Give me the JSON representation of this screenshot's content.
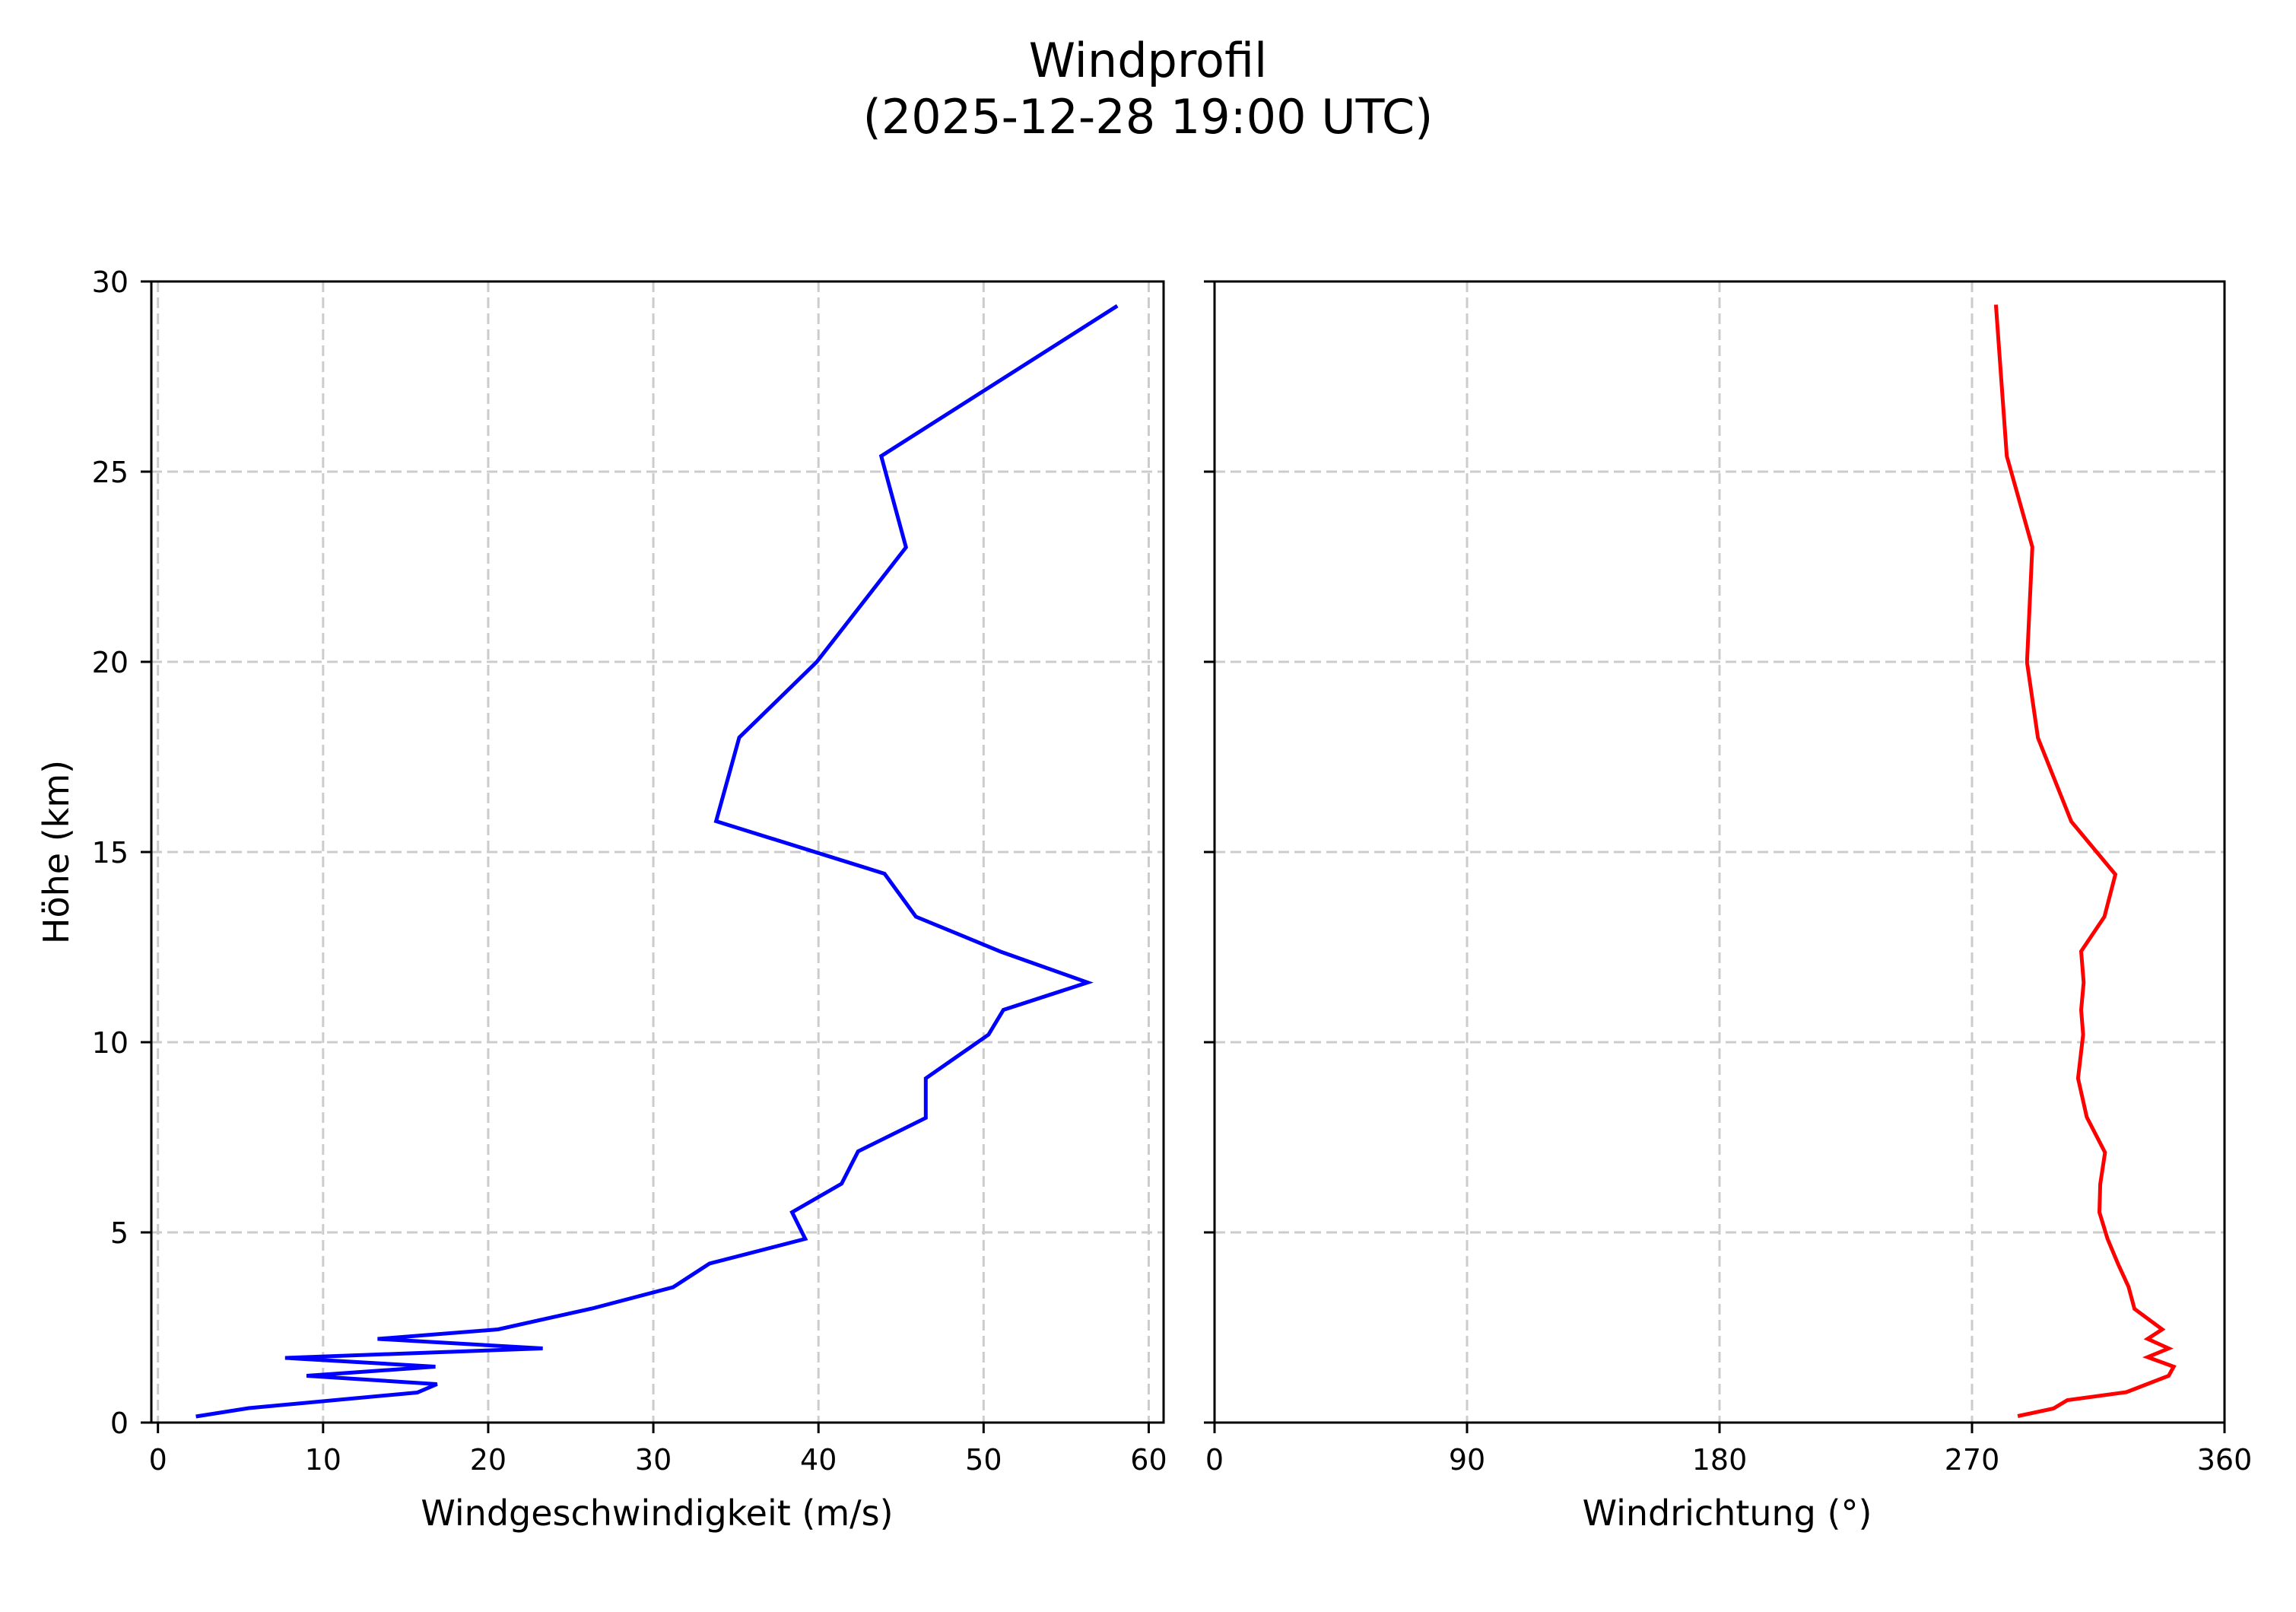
{
  "figure": {
    "title_line1": "Windprofil",
    "title_line2": "(2025-12-28 19:00 UTC)",
    "background": "#ffffff"
  },
  "chart_data": [
    {
      "type": "line",
      "panel": "left",
      "title": "Windprofil (2025-12-28 19:00 UTC)",
      "xlabel": "Windgeschwindigkeit (m/s)",
      "ylabel": "Höhe (km)",
      "xlim": [
        -0.4,
        60.9
      ],
      "ylim": [
        0,
        30
      ],
      "xticks": [
        0,
        10,
        20,
        30,
        40,
        50,
        60
      ],
      "xtick_labels": [
        "0",
        "10",
        "20",
        "30",
        "40",
        "50",
        "60"
      ],
      "yticks": [
        0,
        5,
        10,
        15,
        20,
        25,
        30
      ],
      "ytick_labels": [
        "0",
        "5",
        "10",
        "15",
        "20",
        "25",
        "30"
      ],
      "grid": true,
      "grid_style": "dashed",
      "legend": null,
      "series": [
        {
          "name": "Windgeschwindigkeit",
          "color": "#0000ff",
          "x": [
            2.3,
            5.5,
            15.7,
            16.9,
            9.0,
            16.8,
            7.7,
            23.3,
            13.3,
            20.6,
            26.3,
            31.2,
            33.4,
            39.2,
            38.4,
            41.4,
            42.4,
            46.5,
            46.5,
            50.3,
            51.2,
            56.3,
            51.1,
            45.9,
            44.0,
            33.8,
            35.2,
            39.9,
            45.3,
            43.8,
            58.1
          ],
          "y": [
            0.16,
            0.38,
            0.79,
            1.01,
            1.23,
            1.47,
            1.7,
            1.95,
            2.2,
            2.45,
            3.0,
            3.56,
            4.18,
            4.83,
            5.53,
            6.28,
            7.13,
            8.01,
            9.05,
            10.2,
            10.85,
            11.57,
            12.37,
            13.3,
            14.43,
            15.81,
            18.01,
            20.0,
            23.01,
            25.41,
            29.36
          ]
        }
      ]
    },
    {
      "type": "line",
      "panel": "right",
      "xlabel": "Windrichtung (°)",
      "ylabel": "",
      "xlim": [
        0,
        360
      ],
      "ylim": [
        0,
        30
      ],
      "xticks": [
        0,
        90,
        180,
        270,
        360
      ],
      "xtick_labels": [
        "0",
        "90",
        "180",
        "270",
        "360"
      ],
      "yticks": [
        0,
        5,
        10,
        15,
        20,
        25,
        30
      ],
      "ytick_labels": [],
      "sharey": true,
      "grid": true,
      "grid_style": "dashed",
      "legend": null,
      "series": [
        {
          "name": "Windrichtung",
          "color": "#ff0000",
          "x": [
            286.3,
            299.0,
            304.0,
            325.0,
            340.1,
            341.9,
            332.6,
            340.1,
            332.6,
            337.8,
            327.9,
            325.8,
            322.0,
            318.3,
            315.4,
            315.7,
            317.4,
            310.9,
            307.8,
            309.6,
            308.9,
            309.8,
            308.9,
            317.2,
            321.1,
            305.4,
            293.5,
            289.6,
            291.5,
            282.4,
            278.5
          ],
          "y": [
            0.17,
            0.37,
            0.59,
            0.8,
            1.23,
            1.47,
            1.72,
            1.95,
            2.2,
            2.45,
            2.99,
            3.57,
            4.18,
            4.83,
            5.53,
            6.27,
            7.1,
            8.03,
            9.05,
            10.2,
            10.85,
            11.57,
            12.39,
            13.3,
            14.41,
            15.8,
            18.0,
            19.99,
            23.02,
            25.41,
            29.39
          ]
        }
      ]
    }
  ],
  "style": {
    "grid_color": "#cccccc",
    "axis_color": "#000000",
    "line_width": 5
  }
}
